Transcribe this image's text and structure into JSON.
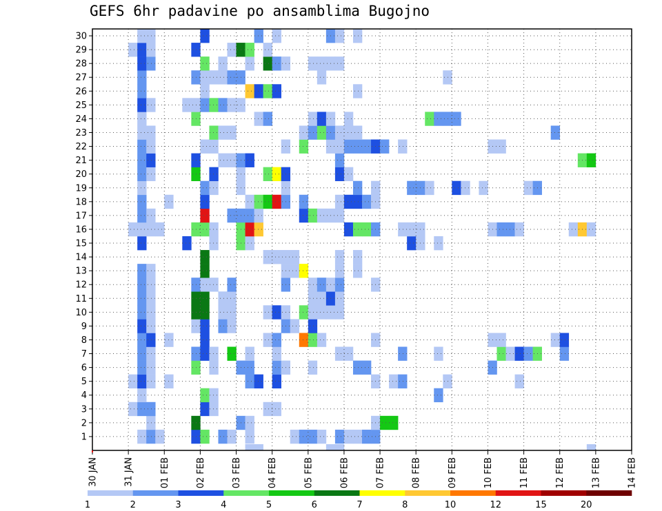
{
  "chart_data": {
    "type": "heatmap",
    "title": "GEFS 6hr padavine po ansamblima Bugojno",
    "xlabel": "",
    "ylabel": "",
    "x_ticks": [
      "30 JAN",
      "31 JAN",
      "01 FEB",
      "02 FEB",
      "03 FEB",
      "04 FEB",
      "05 FEB",
      "06 FEB",
      "07 FEB",
      "08 FEB",
      "09 FEB",
      "10 FEB",
      "11 FEB",
      "12 FEB",
      "13 FEB",
      "14 FEB"
    ],
    "y_ticks": [
      "1",
      "2",
      "3",
      "4",
      "5",
      "6",
      "7",
      "8",
      "9",
      "10",
      "11",
      "12",
      "13",
      "14",
      "15",
      "16",
      "17",
      "18",
      "19",
      "20",
      "21",
      "22",
      "23",
      "24",
      "25",
      "26",
      "27",
      "28",
      "29",
      "30"
    ],
    "xlim": [
      "30 JAN",
      "14 FEB"
    ],
    "ylim": [
      0,
      30
    ],
    "time_step_hours": 6,
    "grid": true,
    "legend_position": "bottom",
    "colorbar": {
      "ticks": [
        "1",
        "2",
        "3",
        "4",
        "5",
        "6",
        "7",
        "8",
        "10",
        "12",
        "15",
        "20"
      ],
      "colors": [
        "#b4c8f5",
        "#6496f0",
        "#1e50e1",
        "#64e664",
        "#14c814",
        "#0a7814",
        "#ffff00",
        "#ffc832",
        "#ff7800",
        "#e11414",
        "#a00000",
        "#6e0000"
      ]
    },
    "cells": [
      [
        1,
        31.25,
        1
      ],
      [
        1,
        31.5,
        2
      ],
      [
        1,
        31.75,
        1
      ],
      [
        1,
        32.75,
        3
      ],
      [
        1,
        33,
        4
      ],
      [
        1,
        33.5,
        2
      ],
      [
        1,
        33.75,
        1
      ],
      [
        1,
        34.25,
        1
      ],
      [
        1,
        35.5,
        1
      ],
      [
        1,
        35.75,
        2
      ],
      [
        1,
        36,
        2
      ],
      [
        1,
        36.25,
        1
      ],
      [
        1,
        36.75,
        2
      ],
      [
        1,
        37,
        1
      ],
      [
        1,
        37.25,
        1
      ],
      [
        1,
        37.5,
        2
      ],
      [
        1,
        37.75,
        2
      ],
      [
        2,
        31.5,
        1
      ],
      [
        2,
        32.75,
        6
      ],
      [
        2,
        34,
        2
      ],
      [
        2,
        34.25,
        1
      ],
      [
        2,
        37.75,
        1
      ],
      [
        2,
        38,
        5
      ],
      [
        2,
        38.25,
        5
      ],
      [
        3,
        31,
        1
      ],
      [
        3,
        31.25,
        2
      ],
      [
        3,
        31.5,
        2
      ],
      [
        3,
        33,
        3
      ],
      [
        3,
        33.25,
        1
      ],
      [
        3,
        34.75,
        1
      ],
      [
        3,
        35,
        1
      ],
      [
        4,
        31.25,
        1
      ],
      [
        4,
        33,
        4
      ],
      [
        4,
        33.25,
        1
      ],
      [
        4,
        39.5,
        2
      ],
      [
        5,
        31,
        1
      ],
      [
        5,
        31.25,
        3
      ],
      [
        5,
        31.5,
        1
      ],
      [
        5,
        32,
        1
      ],
      [
        5,
        34.25,
        2
      ],
      [
        5,
        34.5,
        3
      ],
      [
        5,
        35,
        3
      ],
      [
        5,
        37.75,
        1
      ],
      [
        5,
        38.25,
        1
      ],
      [
        5,
        38.5,
        2
      ],
      [
        5,
        39.75,
        1
      ],
      [
        5,
        41.75,
        1
      ],
      [
        6,
        31.25,
        2
      ],
      [
        6,
        31.5,
        1
      ],
      [
        6,
        32.75,
        4
      ],
      [
        6,
        33.25,
        1
      ],
      [
        6,
        34,
        2
      ],
      [
        6,
        34.25,
        2
      ],
      [
        6,
        35,
        2
      ],
      [
        6,
        35.25,
        1
      ],
      [
        6,
        36,
        1
      ],
      [
        6,
        37.25,
        2
      ],
      [
        6,
        37.5,
        2
      ],
      [
        6,
        41,
        2
      ],
      [
        7,
        31.25,
        2
      ],
      [
        7,
        31.5,
        1
      ],
      [
        7,
        32.75,
        2
      ],
      [
        7,
        33,
        3
      ],
      [
        7,
        33.25,
        1
      ],
      [
        7,
        33.75,
        5
      ],
      [
        7,
        34.25,
        1
      ],
      [
        7,
        35,
        1
      ],
      [
        7,
        36.75,
        1
      ],
      [
        7,
        37,
        1
      ],
      [
        7,
        38.5,
        2
      ],
      [
        7,
        39.5,
        1
      ],
      [
        7,
        41.25,
        4
      ],
      [
        7,
        41.5,
        1
      ],
      [
        7,
        41.75,
        3
      ],
      [
        7,
        42,
        2
      ],
      [
        7,
        42.25,
        4
      ],
      [
        7,
        43,
        2
      ],
      [
        8,
        31.25,
        2
      ],
      [
        8,
        31.5,
        3
      ],
      [
        8,
        32,
        1
      ],
      [
        8,
        33,
        3
      ],
      [
        8,
        34.75,
        1
      ],
      [
        8,
        35,
        2
      ],
      [
        8,
        35.75,
        9
      ],
      [
        8,
        36,
        4
      ],
      [
        8,
        36.25,
        1
      ],
      [
        8,
        37.75,
        1
      ],
      [
        8,
        41,
        1
      ],
      [
        8,
        41.25,
        1
      ],
      [
        8,
        42.75,
        1
      ],
      [
        8,
        43,
        3
      ],
      [
        9,
        31.25,
        3
      ],
      [
        9,
        31.5,
        1
      ],
      [
        9,
        32.75,
        1
      ],
      [
        9,
        33,
        3
      ],
      [
        9,
        33.5,
        2
      ],
      [
        9,
        33.75,
        1
      ],
      [
        9,
        35.25,
        2
      ],
      [
        9,
        35.5,
        1
      ],
      [
        9,
        36,
        3
      ],
      [
        10,
        31.25,
        2
      ],
      [
        10,
        31.5,
        1
      ],
      [
        10,
        32.75,
        6
      ],
      [
        10,
        33,
        6
      ],
      [
        10,
        33.5,
        1
      ],
      [
        10,
        33.75,
        1
      ],
      [
        10,
        34.75,
        1
      ],
      [
        10,
        35,
        3
      ],
      [
        10,
        35.25,
        1
      ],
      [
        10,
        35.75,
        4
      ],
      [
        10,
        36,
        1
      ],
      [
        10,
        36.25,
        1
      ],
      [
        10,
        36.5,
        1
      ],
      [
        10,
        36.75,
        1
      ],
      [
        11,
        31.25,
        2
      ],
      [
        11,
        31.5,
        1
      ],
      [
        11,
        32.75,
        6
      ],
      [
        11,
        33,
        6
      ],
      [
        11,
        33.5,
        1
      ],
      [
        11,
        33.75,
        1
      ],
      [
        11,
        36,
        1
      ],
      [
        11,
        36.25,
        1
      ],
      [
        11,
        36.5,
        3
      ],
      [
        11,
        36.75,
        1
      ],
      [
        12,
        31.25,
        2
      ],
      [
        12,
        31.5,
        1
      ],
      [
        12,
        32.75,
        2
      ],
      [
        12,
        33,
        1
      ],
      [
        12,
        33.25,
        1
      ],
      [
        12,
        33.75,
        2
      ],
      [
        12,
        35.25,
        2
      ],
      [
        12,
        36,
        1
      ],
      [
        12,
        36.25,
        2
      ],
      [
        12,
        36.5,
        1
      ],
      [
        12,
        36.75,
        2
      ],
      [
        12,
        37.75,
        1
      ],
      [
        13,
        31.25,
        2
      ],
      [
        13,
        31.5,
        1
      ],
      [
        13,
        33,
        6
      ],
      [
        13,
        35.25,
        1
      ],
      [
        13,
        35.5,
        1
      ],
      [
        13,
        35.75,
        7
      ],
      [
        13,
        36.75,
        1
      ],
      [
        13,
        37.25,
        1
      ],
      [
        14,
        33,
        6
      ],
      [
        14,
        34.75,
        1
      ],
      [
        14,
        35,
        1
      ],
      [
        14,
        35.25,
        1
      ],
      [
        14,
        35.5,
        1
      ],
      [
        14,
        36.75,
        1
      ],
      [
        14,
        37.25,
        1
      ],
      [
        15,
        31.25,
        3
      ],
      [
        15,
        32.5,
        3
      ],
      [
        15,
        33.25,
        1
      ],
      [
        15,
        34,
        4
      ],
      [
        15,
        34.25,
        1
      ],
      [
        15,
        38.75,
        3
      ],
      [
        15,
        39,
        1
      ],
      [
        15,
        39.5,
        1
      ],
      [
        16,
        31,
        1
      ],
      [
        16,
        31.25,
        1
      ],
      [
        16,
        31.5,
        1
      ],
      [
        16,
        31.75,
        1
      ],
      [
        16,
        32.75,
        4
      ],
      [
        16,
        33,
        4
      ],
      [
        16,
        33.25,
        1
      ],
      [
        16,
        34,
        4
      ],
      [
        16,
        34.25,
        10
      ],
      [
        16,
        34.5,
        8
      ],
      [
        16,
        37,
        3
      ],
      [
        16,
        37.25,
        4
      ],
      [
        16,
        37.5,
        4
      ],
      [
        16,
        37.75,
        2
      ],
      [
        16,
        38.5,
        1
      ],
      [
        16,
        38.75,
        1
      ],
      [
        16,
        39,
        1
      ],
      [
        16,
        41,
        1
      ],
      [
        16,
        41.25,
        2
      ],
      [
        16,
        41.5,
        2
      ],
      [
        16,
        41.75,
        1
      ],
      [
        16,
        43.25,
        1
      ],
      [
        16,
        43.5,
        8
      ],
      [
        16,
        43.75,
        1
      ],
      [
        17,
        31.25,
        2
      ],
      [
        17,
        31.5,
        1
      ],
      [
        17,
        33,
        10
      ],
      [
        17,
        33.75,
        2
      ],
      [
        17,
        34,
        2
      ],
      [
        17,
        34.25,
        2
      ],
      [
        17,
        34.5,
        1
      ],
      [
        17,
        35.75,
        3
      ],
      [
        17,
        36,
        4
      ],
      [
        17,
        36.25,
        1
      ],
      [
        17,
        36.5,
        1
      ],
      [
        17,
        36.75,
        1
      ],
      [
        18,
        31.25,
        2
      ],
      [
        18,
        32,
        1
      ],
      [
        18,
        33,
        3
      ],
      [
        18,
        34.25,
        1
      ],
      [
        18,
        34.5,
        4
      ],
      [
        18,
        34.75,
        5
      ],
      [
        18,
        35,
        10
      ],
      [
        18,
        35.25,
        2
      ],
      [
        18,
        35.75,
        2
      ],
      [
        18,
        36.75,
        1
      ],
      [
        18,
        37,
        3
      ],
      [
        18,
        37.25,
        3
      ],
      [
        18,
        37.5,
        2
      ],
      [
        18,
        37.75,
        1
      ],
      [
        19,
        31.25,
        1
      ],
      [
        19,
        33,
        2
      ],
      [
        19,
        33.25,
        1
      ],
      [
        19,
        34,
        1
      ],
      [
        19,
        35.25,
        1
      ],
      [
        19,
        37.25,
        2
      ],
      [
        19,
        37.75,
        1
      ],
      [
        19,
        38.75,
        2
      ],
      [
        19,
        39,
        2
      ],
      [
        19,
        39.25,
        1
      ],
      [
        19,
        40,
        3
      ],
      [
        19,
        40.25,
        1
      ],
      [
        19,
        40.75,
        1
      ],
      [
        19,
        42,
        1
      ],
      [
        19,
        42.25,
        2
      ],
      [
        20,
        31.25,
        2
      ],
      [
        20,
        31.5,
        1
      ],
      [
        20,
        32.75,
        5
      ],
      [
        20,
        33.25,
        3
      ],
      [
        20,
        34,
        1
      ],
      [
        20,
        34.75,
        4
      ],
      [
        20,
        35,
        7
      ],
      [
        20,
        35.25,
        3
      ],
      [
        20,
        36.75,
        3
      ],
      [
        20,
        37,
        1
      ],
      [
        21,
        31.25,
        2
      ],
      [
        21,
        31.5,
        3
      ],
      [
        21,
        32.75,
        3
      ],
      [
        21,
        33.5,
        1
      ],
      [
        21,
        33.75,
        1
      ],
      [
        21,
        34,
        2
      ],
      [
        21,
        34.25,
        3
      ],
      [
        21,
        36.75,
        2
      ],
      [
        21,
        43.5,
        4
      ],
      [
        21,
        43.75,
        5
      ],
      [
        22,
        31.25,
        2
      ],
      [
        22,
        31.5,
        1
      ],
      [
        22,
        33,
        1
      ],
      [
        22,
        33.25,
        1
      ],
      [
        22,
        35.25,
        1
      ],
      [
        22,
        35.75,
        4
      ],
      [
        22,
        36.5,
        1
      ],
      [
        22,
        36.75,
        1
      ],
      [
        22,
        37,
        2
      ],
      [
        22,
        37.25,
        2
      ],
      [
        22,
        37.5,
        2
      ],
      [
        22,
        37.75,
        3
      ],
      [
        22,
        38,
        2
      ],
      [
        22,
        38.5,
        1
      ],
      [
        22,
        41,
        1
      ],
      [
        22,
        41.25,
        1
      ],
      [
        23,
        31.25,
        1
      ],
      [
        23,
        31.5,
        1
      ],
      [
        23,
        33.25,
        4
      ],
      [
        23,
        33.5,
        1
      ],
      [
        23,
        33.75,
        1
      ],
      [
        23,
        35.75,
        1
      ],
      [
        23,
        36,
        2
      ],
      [
        23,
        36.25,
        4
      ],
      [
        23,
        36.5,
        2
      ],
      [
        23,
        36.75,
        1
      ],
      [
        23,
        37,
        1
      ],
      [
        23,
        37.25,
        1
      ],
      [
        23,
        42.75,
        2
      ],
      [
        24,
        31.25,
        1
      ],
      [
        24,
        32.75,
        4
      ],
      [
        24,
        34.5,
        1
      ],
      [
        24,
        34.75,
        2
      ],
      [
        24,
        36,
        1
      ],
      [
        24,
        36.25,
        3
      ],
      [
        24,
        36.5,
        1
      ],
      [
        24,
        37,
        1
      ],
      [
        24,
        39.25,
        4
      ],
      [
        24,
        39.5,
        2
      ],
      [
        24,
        39.75,
        2
      ],
      [
        24,
        40,
        2
      ],
      [
        25,
        31.25,
        3
      ],
      [
        25,
        31.5,
        1
      ],
      [
        25,
        32.5,
        1
      ],
      [
        25,
        32.75,
        1
      ],
      [
        25,
        33,
        2
      ],
      [
        25,
        33.25,
        4
      ],
      [
        25,
        33.5,
        2
      ],
      [
        25,
        33.75,
        1
      ],
      [
        25,
        34,
        1
      ],
      [
        26,
        31.25,
        2
      ],
      [
        26,
        33,
        1
      ],
      [
        26,
        34.25,
        8
      ],
      [
        26,
        34.5,
        3
      ],
      [
        26,
        34.75,
        4
      ],
      [
        26,
        35,
        3
      ],
      [
        26,
        37.25,
        1
      ],
      [
        27,
        31.25,
        2
      ],
      [
        27,
        32.75,
        2
      ],
      [
        27,
        33,
        1
      ],
      [
        27,
        33.25,
        1
      ],
      [
        27,
        33.5,
        1
      ],
      [
        27,
        33.75,
        2
      ],
      [
        27,
        34,
        2
      ],
      [
        27,
        36.25,
        1
      ],
      [
        27,
        39.75,
        1
      ],
      [
        28,
        31.25,
        3
      ],
      [
        28,
        31.5,
        2
      ],
      [
        28,
        33,
        4
      ],
      [
        28,
        33.5,
        1
      ],
      [
        28,
        34.25,
        1
      ],
      [
        28,
        34.75,
        6
      ],
      [
        28,
        35,
        2
      ],
      [
        28,
        35.25,
        1
      ],
      [
        28,
        36,
        1
      ],
      [
        28,
        36.25,
        1
      ],
      [
        28,
        36.5,
        1
      ],
      [
        28,
        36.75,
        1
      ],
      [
        29,
        31,
        1
      ],
      [
        29,
        31.25,
        3
      ],
      [
        29,
        31.5,
        1
      ],
      [
        29,
        32.75,
        3
      ],
      [
        29,
        33.75,
        1
      ],
      [
        29,
        34,
        6
      ],
      [
        29,
        34.25,
        4
      ],
      [
        29,
        34.75,
        1
      ],
      [
        30,
        31.25,
        1
      ],
      [
        30,
        31.5,
        1
      ],
      [
        30,
        33,
        3
      ],
      [
        30,
        34.5,
        2
      ],
      [
        30,
        35,
        1
      ],
      [
        30,
        36.5,
        2
      ],
      [
        30,
        36.75,
        1
      ],
      [
        30,
        37.25,
        1
      ]
    ],
    "bottom_cells": [
      [
        34.25,
        1
      ],
      [
        34.5,
        1
      ],
      [
        36.5,
        1
      ],
      [
        36.75,
        1
      ],
      [
        43.75,
        1
      ]
    ]
  }
}
